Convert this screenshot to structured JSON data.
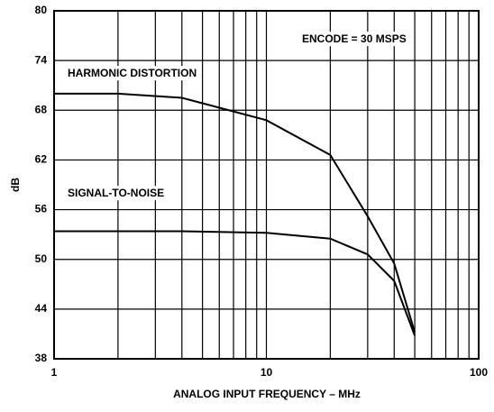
{
  "chart_data": {
    "type": "line",
    "x_label": "ANALOG INPUT FREQUENCY – MHz",
    "y_label": "dB",
    "annotations": [
      "ENCODE = 30 MSPS",
      "HARMONIC DISTORTION",
      "SIGNAL-TO-NOISE"
    ],
    "x": [
      1,
      2,
      4,
      10,
      20,
      30,
      40,
      50
    ],
    "series": [
      {
        "name": "HARMONIC DISTORTION",
        "color": "#000000",
        "values": [
          70,
          70,
          69.5,
          66.8,
          62.6,
          55.2,
          49.5,
          41.2
        ]
      },
      {
        "name": "SIGNAL-TO-NOISE",
        "color": "#000000",
        "values": [
          53.4,
          53.4,
          53.4,
          53.2,
          52.5,
          50.6,
          47.4,
          40.8
        ]
      }
    ],
    "xlim": [
      1,
      100
    ],
    "ylim": [
      38,
      80
    ],
    "x_log": true,
    "xticks": [
      1,
      10,
      100
    ],
    "x_minor_ticks": [
      2,
      3,
      4,
      5,
      6,
      7,
      8,
      9,
      20,
      30,
      40,
      50,
      60,
      70,
      80,
      90
    ],
    "yticks": [
      38,
      44,
      50,
      56,
      62,
      68,
      74,
      80
    ],
    "grid": true
  }
}
